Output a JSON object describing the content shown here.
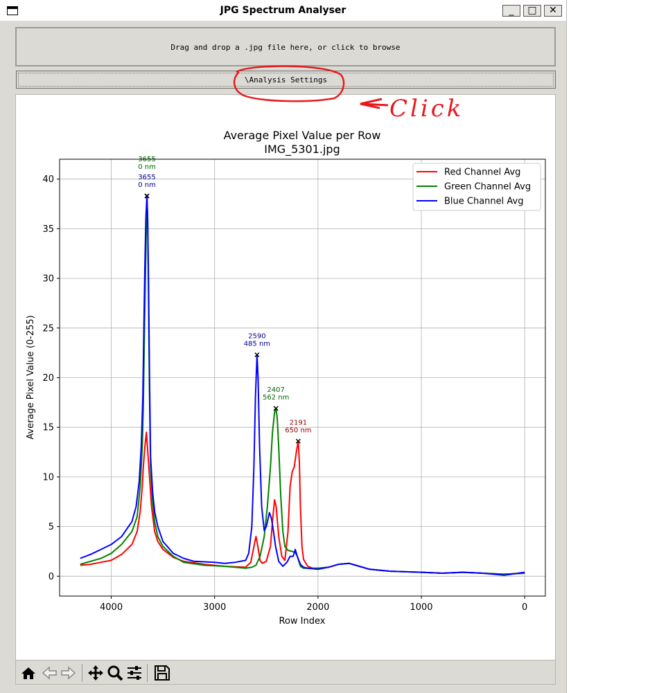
{
  "window": {
    "title": "JPG Spectrum Analyser",
    "minimize": "_",
    "maximize": "□",
    "close": "✕"
  },
  "dropzone": {
    "label": "Drag and drop a .jpg file here, or click to browse"
  },
  "settings": {
    "label": "\\Analysis Settings"
  },
  "annotation": {
    "text": "Click"
  },
  "toolbar": {
    "icons": [
      "home-icon",
      "back-arrow-icon",
      "forward-arrow-icon",
      "pan-icon",
      "zoom-icon",
      "configure-subplots-icon",
      "save-icon"
    ]
  },
  "colors": {
    "red": "#ff0000",
    "green": "#008000",
    "blue": "#0000ff",
    "annotation": "#e8181d"
  },
  "chart_data": {
    "type": "line",
    "title": "Average Pixel Value per Row",
    "subtitle": "IMG_5301.jpg",
    "xlabel": "Row Index",
    "ylabel": "Average Pixel Value (0-255)",
    "xlim": [
      4500,
      -200
    ],
    "ylim": [
      -2,
      42
    ],
    "x_inverted": true,
    "xticks": [
      4000,
      3000,
      2000,
      1000,
      0
    ],
    "yticks": [
      0,
      5,
      10,
      15,
      20,
      25,
      30,
      35,
      40
    ],
    "grid": true,
    "legend_position": "top-right",
    "series": [
      {
        "name": "Red Channel Avg",
        "color": "#ff0000",
        "points": [
          [
            4300,
            1.1
          ],
          [
            4200,
            1.2
          ],
          [
            4100,
            1.4
          ],
          [
            4000,
            1.6
          ],
          [
            3900,
            2.2
          ],
          [
            3800,
            3.2
          ],
          [
            3750,
            4.5
          ],
          [
            3720,
            6.5
          ],
          [
            3700,
            9
          ],
          [
            3690,
            11
          ],
          [
            3675,
            13
          ],
          [
            3660,
            14.5
          ],
          [
            3650,
            13
          ],
          [
            3630,
            10
          ],
          [
            3610,
            7
          ],
          [
            3580,
            4.5
          ],
          [
            3550,
            3.5
          ],
          [
            3500,
            2.7
          ],
          [
            3400,
            1.9
          ],
          [
            3300,
            1.5
          ],
          [
            3100,
            1.2
          ],
          [
            2900,
            1.0
          ],
          [
            2700,
            0.9
          ],
          [
            2650,
            1.4
          ],
          [
            2610,
            3.5
          ],
          [
            2600,
            4.0
          ],
          [
            2585,
            3.2
          ],
          [
            2560,
            1.6
          ],
          [
            2540,
            1.3
          ],
          [
            2500,
            1.5
          ],
          [
            2460,
            3.0
          ],
          [
            2440,
            5.5
          ],
          [
            2420,
            7.7
          ],
          [
            2405,
            7.0
          ],
          [
            2380,
            4.0
          ],
          [
            2350,
            2.0
          ],
          [
            2320,
            1.6
          ],
          [
            2290,
            4.5
          ],
          [
            2270,
            9.0
          ],
          [
            2250,
            10.5
          ],
          [
            2230,
            11.0
          ],
          [
            2210,
            12.5
          ],
          [
            2191,
            13.6
          ],
          [
            2180,
            11.5
          ],
          [
            2170,
            7.0
          ],
          [
            2155,
            3.0
          ],
          [
            2140,
            1.7
          ],
          [
            2100,
            1.0
          ],
          [
            2050,
            0.8
          ],
          [
            2000,
            0.8
          ],
          [
            1900,
            0.9
          ],
          [
            1800,
            1.2
          ],
          [
            1700,
            1.3
          ],
          [
            1600,
            1.0
          ],
          [
            1500,
            0.7
          ],
          [
            1300,
            0.5
          ],
          [
            1000,
            0.4
          ],
          [
            800,
            0.3
          ],
          [
            600,
            0.4
          ],
          [
            400,
            0.3
          ],
          [
            200,
            0.2
          ],
          [
            0,
            0.3
          ]
        ]
      },
      {
        "name": "Green Channel Avg",
        "color": "#008000",
        "points": [
          [
            4300,
            1.2
          ],
          [
            4200,
            1.5
          ],
          [
            4100,
            1.8
          ],
          [
            4000,
            2.3
          ],
          [
            3900,
            3.2
          ],
          [
            3800,
            4.5
          ],
          [
            3750,
            6.0
          ],
          [
            3720,
            9.0
          ],
          [
            3700,
            13
          ],
          [
            3690,
            17
          ],
          [
            3680,
            24
          ],
          [
            3670,
            30
          ],
          [
            3660,
            36
          ],
          [
            3655,
            38.3
          ],
          [
            3648,
            36
          ],
          [
            3640,
            28
          ],
          [
            3630,
            18
          ],
          [
            3620,
            11
          ],
          [
            3600,
            7.5
          ],
          [
            3580,
            5.5
          ],
          [
            3550,
            4.0
          ],
          [
            3500,
            3.0
          ],
          [
            3400,
            2.0
          ],
          [
            3300,
            1.4
          ],
          [
            3100,
            1.1
          ],
          [
            2900,
            1.0
          ],
          [
            2700,
            0.8
          ],
          [
            2640,
            0.9
          ],
          [
            2600,
            1.1
          ],
          [
            2560,
            2.0
          ],
          [
            2520,
            4.0
          ],
          [
            2490,
            7.0
          ],
          [
            2460,
            11.0
          ],
          [
            2440,
            14.5
          ],
          [
            2420,
            16.5
          ],
          [
            2407,
            16.9
          ],
          [
            2395,
            16.0
          ],
          [
            2380,
            13.0
          ],
          [
            2360,
            8.0
          ],
          [
            2340,
            4.5
          ],
          [
            2320,
            3.0
          ],
          [
            2290,
            2.6
          ],
          [
            2250,
            2.5
          ],
          [
            2220,
            2.4
          ],
          [
            2200,
            2.0
          ],
          [
            2170,
            1.0
          ],
          [
            2140,
            0.8
          ],
          [
            2100,
            0.8
          ],
          [
            2000,
            0.8
          ],
          [
            1900,
            0.9
          ],
          [
            1800,
            1.2
          ],
          [
            1700,
            1.3
          ],
          [
            1600,
            1.0
          ],
          [
            1500,
            0.7
          ],
          [
            1300,
            0.5
          ],
          [
            1000,
            0.4
          ],
          [
            800,
            0.3
          ],
          [
            600,
            0.4
          ],
          [
            400,
            0.3
          ],
          [
            200,
            0.2
          ],
          [
            0,
            0.3
          ]
        ]
      },
      {
        "name": "Blue Channel Avg",
        "color": "#0000ff",
        "points": [
          [
            4300,
            1.8
          ],
          [
            4200,
            2.2
          ],
          [
            4100,
            2.7
          ],
          [
            4000,
            3.2
          ],
          [
            3900,
            4.0
          ],
          [
            3800,
            5.5
          ],
          [
            3760,
            7.0
          ],
          [
            3730,
            9.5
          ],
          [
            3710,
            13
          ],
          [
            3695,
            18
          ],
          [
            3685,
            25
          ],
          [
            3675,
            31
          ],
          [
            3665,
            36
          ],
          [
            3655,
            38.3
          ],
          [
            3648,
            36
          ],
          [
            3640,
            30
          ],
          [
            3630,
            20
          ],
          [
            3620,
            12
          ],
          [
            3600,
            8.5
          ],
          [
            3580,
            6.5
          ],
          [
            3550,
            5.0
          ],
          [
            3500,
            3.5
          ],
          [
            3400,
            2.3
          ],
          [
            3300,
            1.8
          ],
          [
            3200,
            1.5
          ],
          [
            3000,
            1.4
          ],
          [
            2900,
            1.3
          ],
          [
            2800,
            1.4
          ],
          [
            2700,
            1.6
          ],
          [
            2670,
            2.3
          ],
          [
            2640,
            5.0
          ],
          [
            2620,
            11.0
          ],
          [
            2605,
            18.0
          ],
          [
            2590,
            22.3
          ],
          [
            2580,
            20.0
          ],
          [
            2565,
            13.0
          ],
          [
            2545,
            7.0
          ],
          [
            2520,
            4.6
          ],
          [
            2500,
            5.0
          ],
          [
            2470,
            6.4
          ],
          [
            2450,
            5.8
          ],
          [
            2430,
            4.5
          ],
          [
            2410,
            3.0
          ],
          [
            2380,
            1.5
          ],
          [
            2340,
            1.0
          ],
          [
            2300,
            1.4
          ],
          [
            2270,
            2.0
          ],
          [
            2240,
            2.0
          ],
          [
            2220,
            2.7
          ],
          [
            2200,
            2.0
          ],
          [
            2170,
            1.2
          ],
          [
            2140,
            0.9
          ],
          [
            2100,
            0.8
          ],
          [
            2000,
            0.7
          ],
          [
            1900,
            0.9
          ],
          [
            1800,
            1.2
          ],
          [
            1700,
            1.3
          ],
          [
            1600,
            1.0
          ],
          [
            1500,
            0.7
          ],
          [
            1300,
            0.5
          ],
          [
            1000,
            0.4
          ],
          [
            800,
            0.3
          ],
          [
            600,
            0.4
          ],
          [
            400,
            0.3
          ],
          [
            200,
            0.1
          ],
          [
            0,
            0.4
          ]
        ]
      }
    ],
    "peak_markers": [
      {
        "row": 3655,
        "value": 38.3,
        "series": "Green Channel Avg",
        "label_row": "3655",
        "label_nm": "0 nm"
      },
      {
        "row": 3655,
        "value": 38.3,
        "series": "Blue Channel Avg",
        "label_row": "3655",
        "label_nm": "0 nm"
      },
      {
        "row": 2590,
        "value": 22.3,
        "series": "Blue Channel Avg",
        "label_row": "2590",
        "label_nm": "485 nm"
      },
      {
        "row": 2407,
        "value": 16.9,
        "series": "Green Channel Avg",
        "label_row": "2407",
        "label_nm": "562 nm"
      },
      {
        "row": 2191,
        "value": 13.6,
        "series": "Red Channel Avg",
        "label_row": "2191",
        "label_nm": "650 nm"
      }
    ]
  }
}
